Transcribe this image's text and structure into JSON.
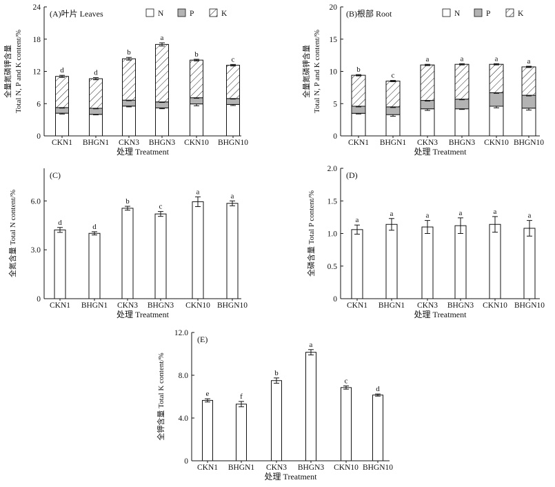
{
  "legend_labels": [
    "N",
    "P",
    "K"
  ],
  "colors": {
    "N": "#ffffff",
    "P": "#b3b3b3",
    "K": "hatch",
    "axis": "#111111"
  },
  "chart_data": [
    {
      "id": "A",
      "type": "bar",
      "stacked": true,
      "title": "(A)叶片 Leaves",
      "xlabel": "处理 Treatment",
      "ylabel": [
        "全量氮磷钾含量",
        "Total N, P and K content/%"
      ],
      "categories": [
        "CKN1",
        "BHGN1",
        "CKN3",
        "BHGN3",
        "CKN10",
        "BHGN10"
      ],
      "yticks": [
        "0",
        "6",
        "12",
        "18",
        "24"
      ],
      "ylim": [
        0,
        24
      ],
      "legend": "top-right",
      "series": [
        {
          "name": "N",
          "values": [
            4.22,
            4.01,
            5.55,
            5.2,
            5.95,
            5.85
          ],
          "err": [
            0.15,
            0.1,
            0.15,
            0.15,
            0.35,
            0.2
          ]
        },
        {
          "name": "P",
          "values": [
            1.05,
            1.13,
            1.1,
            1.12,
            1.15,
            1.1
          ],
          "err": [
            0.1,
            0.1,
            0.1,
            0.1,
            0.1,
            0.1
          ]
        },
        {
          "name": "K",
          "values": [
            5.8,
            5.5,
            7.7,
            10.7,
            7.0,
            6.2
          ],
          "err": [
            0.2,
            0.2,
            0.25,
            0.3,
            0.15,
            0.15
          ]
        }
      ],
      "letters": [
        "d",
        "d",
        "b",
        "a",
        "b",
        "c"
      ]
    },
    {
      "id": "B",
      "type": "bar",
      "stacked": true,
      "title": "(B)根部 Root",
      "xlabel": "处理 Treatment",
      "ylabel": [
        "全量氮磷钾含量",
        "Total N, P and K content/%"
      ],
      "categories": [
        "CKN1",
        "BHGN1",
        "CKN3",
        "BHGN3",
        "CKN10",
        "BHGN10"
      ],
      "yticks": [
        "0",
        "5",
        "10",
        "15",
        "20"
      ],
      "ylim": [
        0,
        20
      ],
      "legend": "top-right",
      "series": [
        {
          "name": "N",
          "values": [
            3.5,
            3.3,
            4.2,
            4.2,
            4.6,
            4.3
          ],
          "err": [
            0.1,
            0.25,
            0.25,
            0.1,
            0.25,
            0.3
          ]
        },
        {
          "name": "P",
          "values": [
            1.1,
            1.2,
            1.3,
            1.5,
            2.1,
            2.0
          ],
          "err": [
            0.1,
            0.1,
            0.1,
            0.1,
            0.1,
            0.1
          ]
        },
        {
          "name": "K",
          "values": [
            4.8,
            4.0,
            5.5,
            5.4,
            4.4,
            4.4
          ],
          "err": [
            0.1,
            0.1,
            0.1,
            0.1,
            0.1,
            0.1
          ]
        }
      ],
      "letters": [
        "b",
        "c",
        "a",
        "a",
        "a",
        "a"
      ]
    },
    {
      "id": "C",
      "type": "bar",
      "title": "(C)",
      "xlabel": "处理 Treatment",
      "ylabel": [
        "全氮含量 Total N content/%"
      ],
      "categories": [
        "CKN1",
        "BHGN1",
        "CKN3",
        "BHGN3",
        "CKN10",
        "BHGN10"
      ],
      "yticks": [
        "0",
        "3.0",
        "6.0"
      ],
      "ylim": [
        0,
        8
      ],
      "values": [
        4.22,
        4.01,
        5.55,
        5.2,
        5.95,
        5.85
      ],
      "err": [
        0.15,
        0.1,
        0.12,
        0.15,
        0.3,
        0.15
      ],
      "letters": [
        "d",
        "d",
        "b",
        "c",
        "a",
        "a"
      ]
    },
    {
      "id": "D",
      "type": "bar",
      "title": "(D)",
      "xlabel": "处理 Treatment",
      "ylabel": [
        "全磷含量 Total P content/%"
      ],
      "categories": [
        "CKN1",
        "BHGN1",
        "CKN3",
        "BHGN3",
        "CKN10",
        "BHGN10"
      ],
      "yticks": [
        "0",
        "0.5",
        "1.0",
        "1.5",
        "2.0"
      ],
      "ylim": [
        0,
        2.0
      ],
      "values": [
        1.06,
        1.14,
        1.1,
        1.12,
        1.14,
        1.08
      ],
      "err": [
        0.07,
        0.09,
        0.1,
        0.12,
        0.12,
        0.12
      ],
      "letters": [
        "a",
        "a",
        "a",
        "a",
        "a",
        "a"
      ]
    },
    {
      "id": "E",
      "type": "bar",
      "title": "(E)",
      "xlabel": "处理 Treatment",
      "ylabel": [
        "全钾含量 Total K content/%"
      ],
      "categories": [
        "CKN1",
        "BHGN1",
        "CKN3",
        "BHGN3",
        "CKN10",
        "BHGN10"
      ],
      "yticks": [
        "0",
        "4.0",
        "8.0",
        "12.0"
      ],
      "ylim": [
        0,
        12
      ],
      "values": [
        5.65,
        5.3,
        7.5,
        10.15,
        6.85,
        6.15
      ],
      "err": [
        0.15,
        0.25,
        0.25,
        0.25,
        0.15,
        0.1
      ],
      "letters": [
        "e",
        "f",
        "b",
        "a",
        "c",
        "d"
      ]
    }
  ]
}
